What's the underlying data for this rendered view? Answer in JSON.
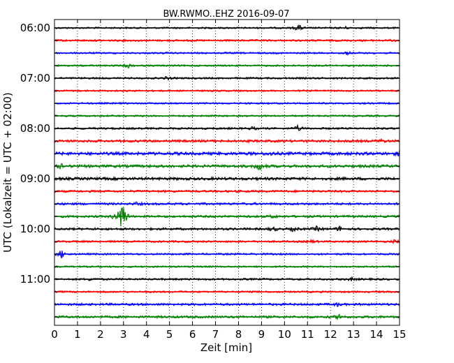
{
  "chart_data": {
    "type": "line",
    "title": "BW.RWMO..EHZ 2016-09-07",
    "xlabel": "Zeit  [min]",
    "ylabel": "UTC (Lokalzeit = UTC + 02:00)",
    "xlim": [
      0,
      15
    ],
    "x_ticks": [
      "0",
      "1",
      "2",
      "3",
      "4",
      "5",
      "6",
      "7",
      "8",
      "9",
      "10",
      "11",
      "12",
      "13",
      "14",
      "15"
    ],
    "y_tick_labels": [
      "06:00",
      "07:00",
      "08:00",
      "09:00",
      "10:00",
      "11:00"
    ],
    "grid": "vertical-dotted",
    "trace_interval_minutes": 15,
    "start_time": "06:00",
    "colors": [
      "#000000",
      "#ff0000",
      "#0000ff",
      "#008000"
    ],
    "series": [
      {
        "start": "06:00",
        "color": "#000000",
        "amplitude": 1.2,
        "events": [
          {
            "t": 10.6,
            "amp": 5
          },
          {
            "t": 12.6,
            "amp": 2
          }
        ]
      },
      {
        "start": "06:15",
        "color": "#ff0000",
        "amplitude": 1.4,
        "events": [
          {
            "t": 14.9,
            "amp": 2
          }
        ]
      },
      {
        "start": "06:30",
        "color": "#0000ff",
        "amplitude": 1.2,
        "events": [
          {
            "t": 12.7,
            "amp": 2
          }
        ]
      },
      {
        "start": "06:45",
        "color": "#008000",
        "amplitude": 1.2,
        "events": [
          {
            "t": 3.2,
            "amp": 3
          }
        ]
      },
      {
        "start": "07:00",
        "color": "#000000",
        "amplitude": 1.3,
        "events": [
          {
            "t": 4.9,
            "amp": 2
          }
        ]
      },
      {
        "start": "07:15",
        "color": "#ff0000",
        "amplitude": 1.2,
        "events": []
      },
      {
        "start": "07:30",
        "color": "#0000ff",
        "amplitude": 1.2,
        "events": []
      },
      {
        "start": "07:45",
        "color": "#008000",
        "amplitude": 1.2,
        "events": []
      },
      {
        "start": "08:00",
        "color": "#000000",
        "amplitude": 1.4,
        "events": [
          {
            "t": 10.6,
            "amp": 4
          },
          {
            "t": 8.6,
            "amp": 2
          }
        ]
      },
      {
        "start": "08:15",
        "color": "#ff0000",
        "amplitude": 1.8,
        "events": [
          {
            "t": 14.2,
            "amp": 2
          }
        ]
      },
      {
        "start": "08:30",
        "color": "#0000ff",
        "amplitude": 2.2,
        "events": [
          {
            "t": 15.0,
            "amp": 3
          },
          {
            "t": 9.4,
            "amp": 2
          }
        ]
      },
      {
        "start": "08:45",
        "color": "#008000",
        "amplitude": 2.0,
        "events": [
          {
            "t": 8.9,
            "amp": 6
          },
          {
            "t": 0.3,
            "amp": 3
          }
        ]
      },
      {
        "start": "09:00",
        "color": "#000000",
        "amplitude": 2.0,
        "events": []
      },
      {
        "start": "09:15",
        "color": "#ff0000",
        "amplitude": 1.6,
        "events": []
      },
      {
        "start": "09:30",
        "color": "#0000ff",
        "amplitude": 1.6,
        "events": [
          {
            "t": 3.6,
            "amp": 2
          }
        ]
      },
      {
        "start": "09:45",
        "color": "#008000",
        "amplitude": 1.6,
        "events": [
          {
            "t": 2.95,
            "amp": 26
          },
          {
            "t": 2.6,
            "amp": 4
          },
          {
            "t": 9.5,
            "amp": 2
          }
        ]
      },
      {
        "start": "10:00",
        "color": "#000000",
        "amplitude": 1.6,
        "events": [
          {
            "t": 9.5,
            "amp": 3
          },
          {
            "t": 10.4,
            "amp": 3
          },
          {
            "t": 11.4,
            "amp": 3
          },
          {
            "t": 12.4,
            "amp": 3
          }
        ]
      },
      {
        "start": "10:15",
        "color": "#ff0000",
        "amplitude": 1.4,
        "events": [
          {
            "t": 11.2,
            "amp": 2
          },
          {
            "t": 14.8,
            "amp": 2
          }
        ]
      },
      {
        "start": "10:30",
        "color": "#0000ff",
        "amplitude": 1.3,
        "events": [
          {
            "t": 0.3,
            "amp": 6
          }
        ]
      },
      {
        "start": "10:45",
        "color": "#008000",
        "amplitude": 1.2,
        "events": []
      },
      {
        "start": "11:00",
        "color": "#000000",
        "amplitude": 1.4,
        "events": [
          {
            "t": 1.6,
            "amp": 2
          },
          {
            "t": 12.9,
            "amp": 2
          }
        ]
      },
      {
        "start": "11:15",
        "color": "#ff0000",
        "amplitude": 1.3,
        "events": []
      },
      {
        "start": "11:30",
        "color": "#0000ff",
        "amplitude": 1.6,
        "events": [
          {
            "t": 12.3,
            "amp": 2
          }
        ]
      },
      {
        "start": "11:45",
        "color": "#008000",
        "amplitude": 1.7,
        "events": [
          {
            "t": 12.4,
            "amp": 4
          }
        ]
      }
    ]
  }
}
